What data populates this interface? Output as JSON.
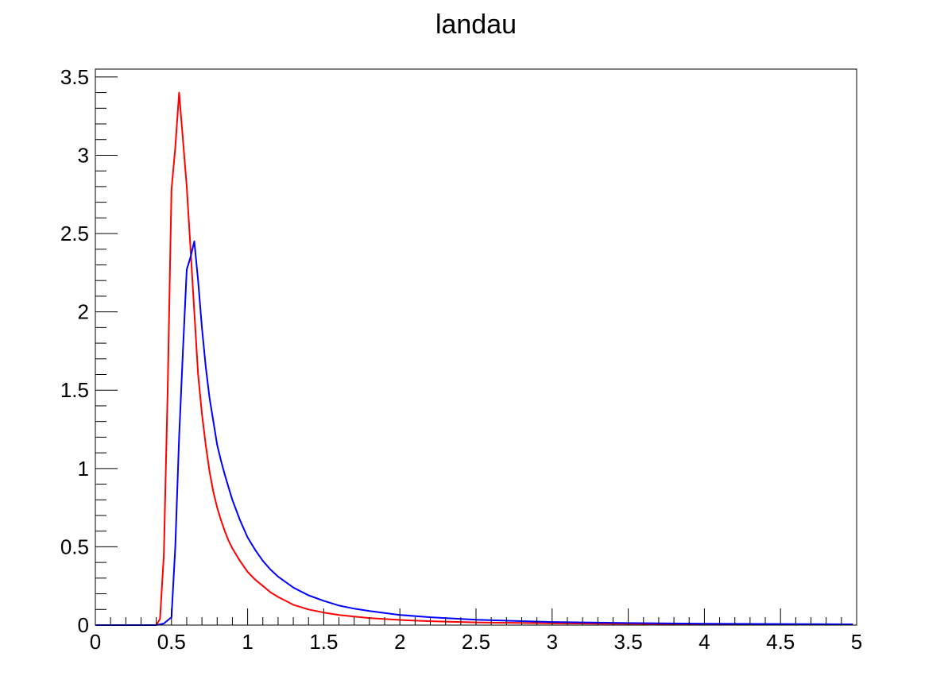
{
  "chart_data": {
    "type": "line",
    "title": "landau",
    "xlabel": "",
    "ylabel": "",
    "xlim": [
      0,
      5
    ],
    "ylim": [
      0,
      3.55
    ],
    "grid": false,
    "x_ticks": [
      0,
      0.5,
      1,
      1.5,
      2,
      2.5,
      3,
      3.5,
      4,
      4.5,
      5
    ],
    "x_tick_labels": [
      "0",
      "0.5",
      "1",
      "1.5",
      "2",
      "2.5",
      "3",
      "3.5",
      "4",
      "4.5",
      "5"
    ],
    "y_ticks": [
      0,
      0.5,
      1,
      1.5,
      2,
      2.5,
      3,
      3.5
    ],
    "y_tick_labels": [
      "0",
      "0.5",
      "1",
      "1.5",
      "2",
      "2.5",
      "3",
      "3.5"
    ],
    "series": [
      {
        "color": "#ff0000",
        "x": [
          0,
          0.1,
          0.2,
          0.3,
          0.4,
          0.425,
          0.45,
          0.475,
          0.5,
          0.525,
          0.55,
          0.575,
          0.6,
          0.625,
          0.65,
          0.675,
          0.7,
          0.725,
          0.75,
          0.775,
          0.8,
          0.825,
          0.85,
          0.875,
          0.9,
          0.95,
          1.0,
          1.05,
          1.1,
          1.15,
          1.2,
          1.3,
          1.4,
          1.5,
          1.6,
          1.7,
          1.8,
          2.0,
          2.2,
          2.5,
          3.0,
          3.5,
          4.0,
          4.5,
          4.975
        ],
        "y": [
          0,
          0,
          0,
          0,
          0,
          0.04,
          0.45,
          1.5,
          2.78,
          3.05,
          3.4,
          3.1,
          2.8,
          2.4,
          2.0,
          1.6,
          1.35,
          1.15,
          0.98,
          0.85,
          0.75,
          0.67,
          0.6,
          0.54,
          0.49,
          0.41,
          0.34,
          0.29,
          0.25,
          0.21,
          0.18,
          0.13,
          0.1,
          0.08,
          0.065,
          0.055,
          0.045,
          0.033,
          0.025,
          0.017,
          0.011,
          0.008,
          0.006,
          0.005,
          0.004
        ]
      },
      {
        "color": "#0000ff",
        "x": [
          0,
          0.1,
          0.2,
          0.3,
          0.4,
          0.45,
          0.5,
          0.525,
          0.55,
          0.575,
          0.6,
          0.625,
          0.65,
          0.675,
          0.7,
          0.725,
          0.75,
          0.775,
          0.8,
          0.825,
          0.85,
          0.875,
          0.9,
          0.95,
          1.0,
          1.05,
          1.1,
          1.15,
          1.2,
          1.3,
          1.4,
          1.5,
          1.6,
          1.7,
          1.8,
          2.0,
          2.2,
          2.5,
          3.0,
          3.5,
          4.0,
          4.5,
          4.975
        ],
        "y": [
          0,
          0,
          0,
          0,
          0,
          0.01,
          0.05,
          0.5,
          1.2,
          1.75,
          2.27,
          2.35,
          2.45,
          2.2,
          1.9,
          1.65,
          1.45,
          1.3,
          1.15,
          1.05,
          0.96,
          0.88,
          0.8,
          0.67,
          0.56,
          0.48,
          0.41,
          0.355,
          0.31,
          0.24,
          0.19,
          0.155,
          0.125,
          0.105,
          0.09,
          0.065,
          0.05,
          0.034,
          0.02,
          0.013,
          0.009,
          0.007,
          0.005
        ]
      }
    ]
  }
}
